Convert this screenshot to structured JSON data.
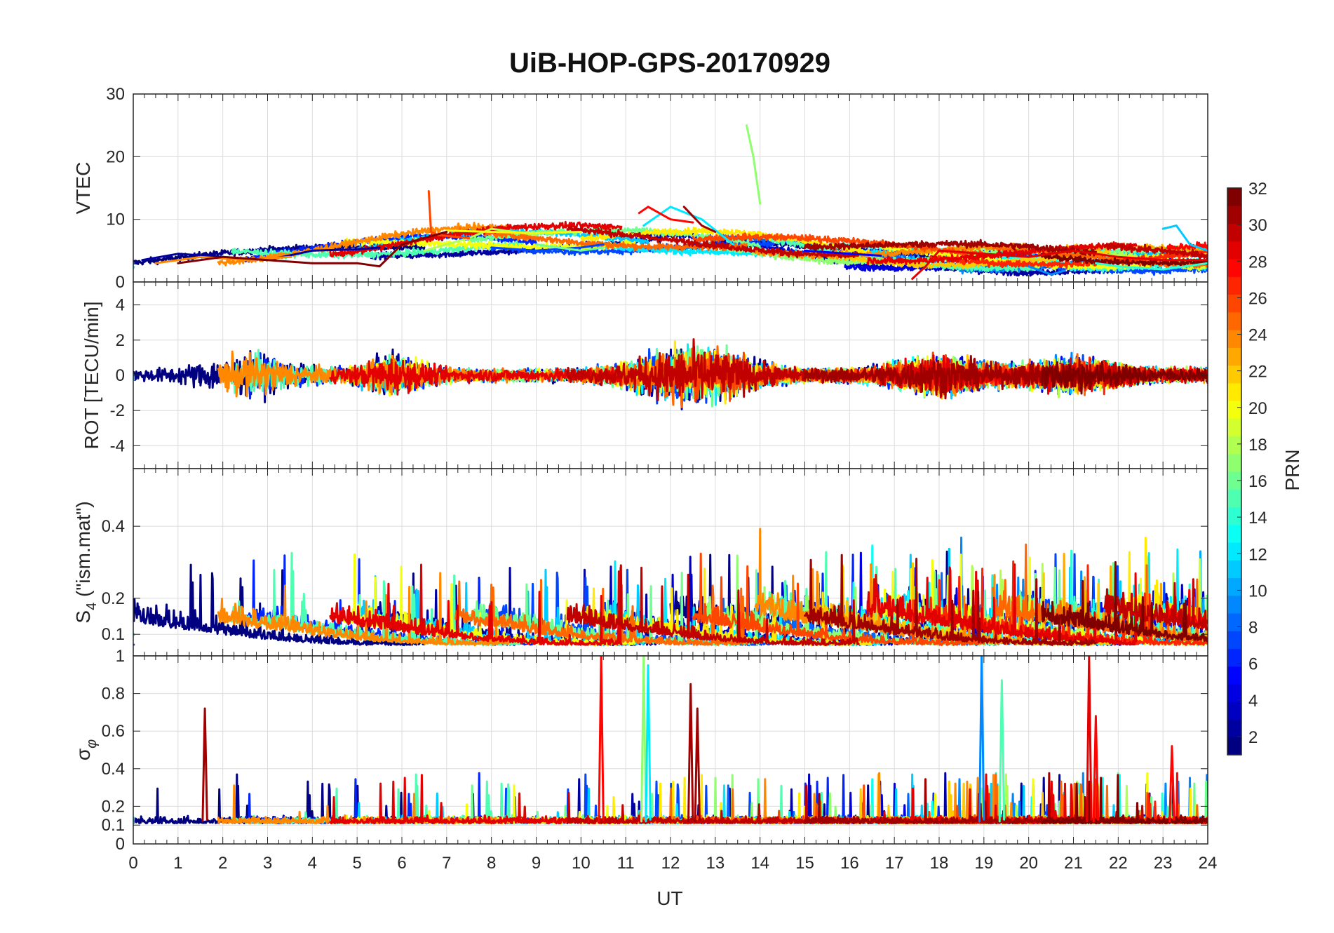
{
  "chart_data": {
    "type": "line",
    "title": "UiB-HOP-GPS-20170929",
    "xlabel": "UT",
    "xlim": [
      0,
      24
    ],
    "x_ticks": [
      "0",
      "1",
      "2",
      "3",
      "4",
      "5",
      "6",
      "7",
      "8",
      "9",
      "10",
      "11",
      "12",
      "13",
      "14",
      "15",
      "16",
      "17",
      "18",
      "19",
      "20",
      "21",
      "22",
      "23",
      "24"
    ],
    "colorbar": {
      "label": "PRN",
      "range": [
        1,
        32
      ],
      "ticks": [
        "2",
        "4",
        "6",
        "8",
        "10",
        "12",
        "14",
        "16",
        "18",
        "20",
        "22",
        "24",
        "26",
        "28",
        "30",
        "32"
      ],
      "colormap": "jet"
    },
    "panels": [
      {
        "ylabel": "VTEC",
        "ylim": [
          0,
          30
        ],
        "y_ticks": [
          {
            "value": 0,
            "label": "0"
          },
          {
            "value": 10,
            "label": "10"
          },
          {
            "value": 20,
            "label": "20"
          },
          {
            "value": 30,
            "label": "30"
          }
        ],
        "series": [
          {
            "prn": 2,
            "x": [
              0.2,
              1,
              2,
              3,
              4,
              5,
              5.5
            ],
            "y": [
              3.5,
              4.5,
              4,
              3.5,
              5,
              5.2,
              5.5
            ]
          },
          {
            "prn": 5,
            "x": [
              15,
              16,
              16.7
            ],
            "y": [
              5,
              4.5,
              4.2
            ]
          },
          {
            "prn": 7,
            "x": [
              8,
              9,
              10,
              10.5
            ],
            "y": [
              5.5,
              5,
              5.5,
              6
            ]
          },
          {
            "prn": 9,
            "x": [
              20,
              20.5,
              20.8
            ],
            "y": [
              2.5,
              1.2,
              1.8
            ]
          },
          {
            "prn": 11,
            "x": [
              23,
              23.3,
              23.6,
              24
            ],
            "y": [
              8.5,
              9,
              6,
              5
            ]
          },
          {
            "prn": 12,
            "x": [
              11.4,
              12,
              12.7,
              13.4
            ],
            "y": [
              9,
              12,
              10,
              6
            ]
          },
          {
            "prn": 14,
            "x": [
              21.5,
              22,
              23,
              24
            ],
            "y": [
              3,
              2.5,
              2,
              3
            ]
          },
          {
            "prn": 16,
            "x": [
              9,
              9.5,
              10,
              10.5
            ],
            "y": [
              6,
              5.5,
              5,
              5.5
            ]
          },
          {
            "prn": 17,
            "x": [
              13.7,
              13.85,
              14.0
            ],
            "y": [
              25,
              20,
              12.5
            ]
          },
          {
            "prn": 18,
            "x": [
              6.5,
              7,
              7.5,
              8,
              9
            ],
            "y": [
              5,
              6,
              7,
              8.5,
              7.5
            ]
          },
          {
            "prn": 20,
            "x": [
              7,
              8,
              9,
              10
            ],
            "y": [
              8.2,
              8,
              7.8,
              8
            ]
          },
          {
            "prn": 24,
            "x": [
              0.5,
              1.5,
              2.5,
              3.5
            ],
            "y": [
              3,
              4,
              3.5,
              4
            ]
          },
          {
            "prn": 26,
            "x": [
              6.6,
              6.65,
              6.8,
              7.5
            ],
            "y": [
              14.5,
              8,
              7.5,
              7
            ]
          },
          {
            "prn": 28,
            "x": [
              11.3,
              11.5,
              12,
              12.5
            ],
            "y": [
              11,
              12,
              10,
              9.5
            ]
          },
          {
            "prn": 29,
            "x": [
              17.4,
              17.7,
              18,
              19,
              20,
              21,
              22,
              23,
              24
            ],
            "y": [
              0.5,
              2.5,
              5,
              4.5,
              4,
              5,
              4,
              3.5,
              3.5
            ]
          },
          {
            "prn": 31,
            "x": [
              12.3,
              12.5,
              12.7,
              13
            ],
            "y": [
              12,
              10.5,
              9,
              8
            ]
          },
          {
            "prn": 32,
            "x": [
              1,
              2,
              3,
              4,
              5,
              5.5,
              6,
              7
            ],
            "y": [
              3,
              4,
              3.5,
              3,
              3,
              2.5,
              6,
              8
            ]
          }
        ],
        "noise_series": true
      },
      {
        "ylabel": "ROT [TECU/min]",
        "ylim": [
          -5.3,
          5.3
        ],
        "y_ticks": [
          {
            "value": -4,
            "label": "-4"
          },
          {
            "value": -2,
            "label": "-2"
          },
          {
            "value": 0,
            "label": "0"
          },
          {
            "value": 2,
            "label": "2"
          },
          {
            "value": 4,
            "label": "4"
          }
        ],
        "noise_series": true
      },
      {
        "ylabel": "S",
        "ylabel_sub": "4",
        "ylabel_suffix": " (\"ism.mat\")",
        "ylim": [
          0.04,
          0.56
        ],
        "y_ticks": [
          {
            "value": 0.1,
            "label": "0.1"
          },
          {
            "value": 0.2,
            "label": "0.2"
          },
          {
            "value": 0.4,
            "label": "0.4"
          }
        ],
        "noise_series": true
      },
      {
        "ylabel": "σ",
        "ylabel_sub": "φ",
        "ylim": [
          0,
          1
        ],
        "y_ticks": [
          {
            "value": 0,
            "label": "0"
          },
          {
            "value": 0.1,
            "label": "0.1"
          },
          {
            "value": 0.2,
            "label": "0.2"
          },
          {
            "value": 0.4,
            "label": "0.4"
          },
          {
            "value": 0.6,
            "label": "0.6"
          },
          {
            "value": 0.8,
            "label": "0.8"
          },
          {
            "value": 1,
            "label": "1"
          }
        ],
        "spikes": [
          {
            "prn": 28,
            "x": 10.45,
            "y": 1.0
          },
          {
            "prn": 17,
            "x": 11.4,
            "y": 1.0
          },
          {
            "prn": 12,
            "x": 11.5,
            "y": 0.95
          },
          {
            "prn": 31,
            "x": 12.45,
            "y": 0.85
          },
          {
            "prn": 31,
            "x": 12.6,
            "y": 0.72
          },
          {
            "prn": 31,
            "x": 1.6,
            "y": 0.72
          },
          {
            "prn": 9,
            "x": 18.95,
            "y": 1.0
          },
          {
            "prn": 15,
            "x": 19.4,
            "y": 0.87
          },
          {
            "prn": 29,
            "x": 21.35,
            "y": 1.0
          },
          {
            "prn": 28,
            "x": 21.5,
            "y": 0.68
          },
          {
            "prn": 28,
            "x": 23.2,
            "y": 0.52
          }
        ],
        "noise_series": true
      }
    ]
  }
}
